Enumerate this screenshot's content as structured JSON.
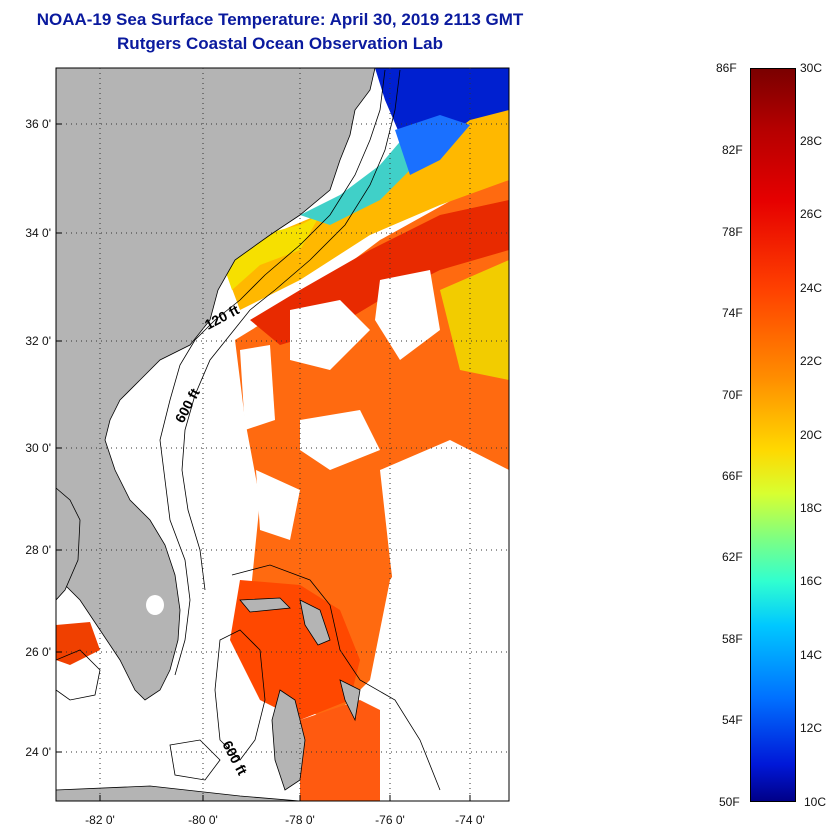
{
  "title": {
    "line1": "NOAA-19 Sea Surface Temperature:  April 30, 2019 2113 GMT",
    "line2": "Rutgers Coastal Ocean Observation Lab"
  },
  "map": {
    "lat_ticks": [
      "36 0'",
      "34 0'",
      "32 0'",
      "30 0'",
      "28 0'",
      "26 0'",
      "24 0'"
    ],
    "lon_ticks": [
      "-82 0'",
      "-80 0'",
      "-78 0'",
      "-76 0'",
      "-74 0'"
    ],
    "contour_labels": [
      "120 ft",
      "600 ft",
      "600 ft"
    ],
    "land_color": "#b4b4b4",
    "cloud_color": "#ffffff"
  },
  "colorbar": {
    "fahrenheit": [
      "86F",
      "82F",
      "78F",
      "74F",
      "70F",
      "66F",
      "62F",
      "58F",
      "54F",
      "50F"
    ],
    "celsius": [
      "30C",
      "28C",
      "26C",
      "24C",
      "22C",
      "20C",
      "18C",
      "16C",
      "14C",
      "12C",
      "10C"
    ],
    "range_f": [
      50,
      86
    ],
    "range_c": [
      10,
      30
    ]
  }
}
